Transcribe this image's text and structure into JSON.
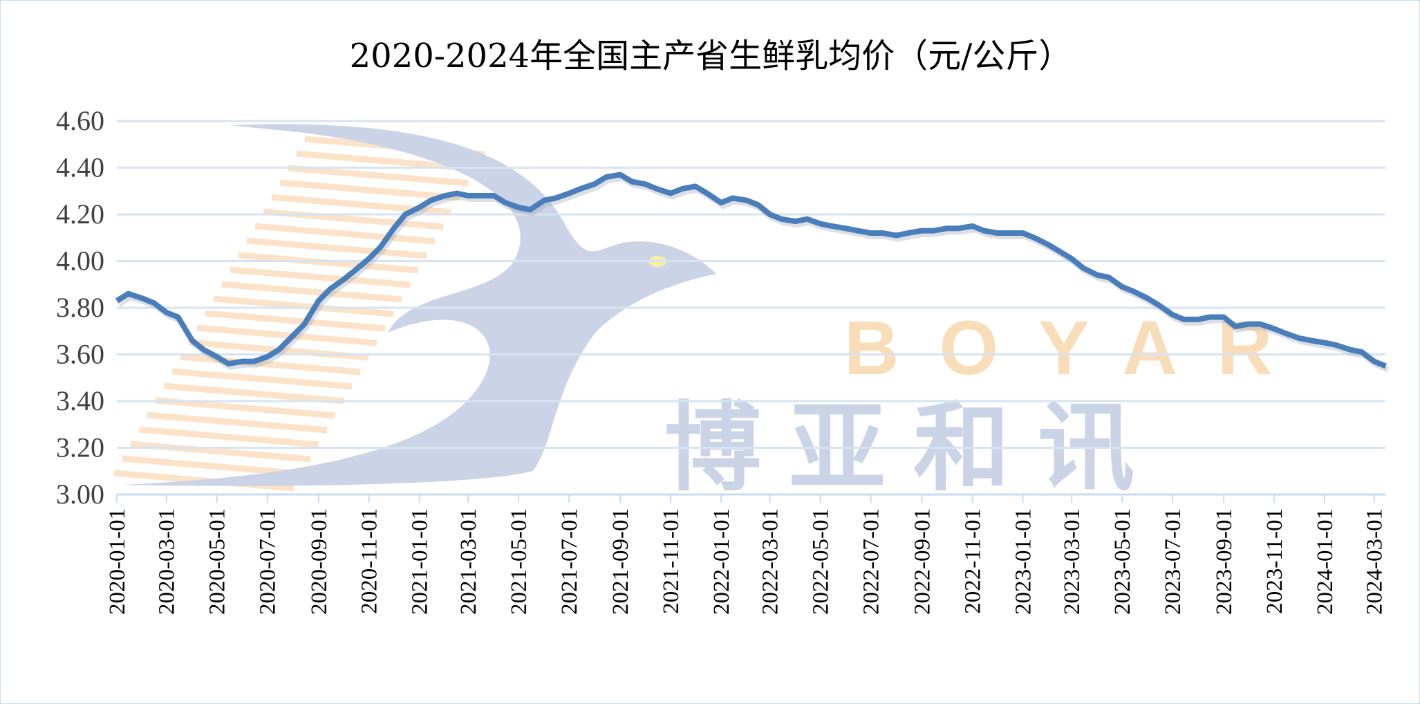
{
  "chart_data": {
    "type": "line",
    "title": "2020-2024年全国主产省生鲜乳均价（元/公斤）",
    "xlabel": "",
    "ylabel": "",
    "ylim": [
      3.0,
      4.6
    ],
    "yticks": [
      "3.00",
      "3.20",
      "3.40",
      "3.60",
      "3.80",
      "4.00",
      "4.20",
      "4.40",
      "4.60"
    ],
    "xticks": [
      "2020-01-01",
      "2020-03-01",
      "2020-05-01",
      "2020-07-01",
      "2020-09-01",
      "2020-11-01",
      "2021-01-01",
      "2021-03-01",
      "2021-05-01",
      "2021-07-01",
      "2021-09-01",
      "2021-11-01",
      "2022-01-01",
      "2022-03-01",
      "2022-05-01",
      "2022-07-01",
      "2022-09-01",
      "2022-11-01",
      "2023-01-01",
      "2023-03-01",
      "2023-05-01",
      "2023-07-01",
      "2023-09-01",
      "2023-11-01",
      "2024-01-01",
      "2024-03-01"
    ],
    "grid": true,
    "line_color": "#4a7ebb",
    "series": [
      {
        "x": [
          "2020-01-01",
          "2020-01-15",
          "2020-02-01",
          "2020-02-15",
          "2020-03-01",
          "2020-03-15",
          "2020-04-01",
          "2020-04-15",
          "2020-05-01",
          "2020-05-15",
          "2020-06-01",
          "2020-06-15",
          "2020-07-01",
          "2020-07-15",
          "2020-08-01",
          "2020-08-15",
          "2020-09-01",
          "2020-09-15",
          "2020-10-01",
          "2020-10-15",
          "2020-11-01",
          "2020-11-15",
          "2020-12-01",
          "2020-12-15",
          "2021-01-01",
          "2021-01-15",
          "2021-02-01",
          "2021-02-15",
          "2021-03-01",
          "2021-03-15",
          "2021-04-01",
          "2021-04-15",
          "2021-05-01",
          "2021-05-15",
          "2021-06-01",
          "2021-06-15",
          "2021-07-01",
          "2021-07-15",
          "2021-08-01",
          "2021-08-15",
          "2021-09-01",
          "2021-09-15",
          "2021-10-01",
          "2021-10-15",
          "2021-11-01",
          "2021-11-15",
          "2021-12-01",
          "2021-12-15",
          "2022-01-01",
          "2022-01-15",
          "2022-02-01",
          "2022-02-15",
          "2022-03-01",
          "2022-03-15",
          "2022-04-01",
          "2022-04-15",
          "2022-05-01",
          "2022-05-15",
          "2022-06-01",
          "2022-06-15",
          "2022-07-01",
          "2022-07-15",
          "2022-08-01",
          "2022-08-15",
          "2022-09-01",
          "2022-09-15",
          "2022-10-01",
          "2022-10-15",
          "2022-11-01",
          "2022-11-15",
          "2022-12-01",
          "2022-12-15",
          "2023-01-01",
          "2023-01-15",
          "2023-02-01",
          "2023-02-15",
          "2023-03-01",
          "2023-03-15",
          "2023-04-01",
          "2023-04-15",
          "2023-05-01",
          "2023-05-15",
          "2023-06-01",
          "2023-06-15",
          "2023-07-01",
          "2023-07-15",
          "2023-08-01",
          "2023-08-15",
          "2023-09-01",
          "2023-09-15",
          "2023-10-01",
          "2023-10-15",
          "2023-11-01",
          "2023-11-15",
          "2023-12-01",
          "2023-12-15",
          "2024-01-01",
          "2024-01-15",
          "2024-02-01",
          "2024-02-15",
          "2024-03-01",
          "2024-03-15"
        ],
        "values": [
          3.83,
          3.86,
          3.84,
          3.82,
          3.78,
          3.76,
          3.66,
          3.62,
          3.59,
          3.56,
          3.57,
          3.57,
          3.59,
          3.62,
          3.68,
          3.73,
          3.83,
          3.88,
          3.92,
          3.96,
          4.01,
          4.06,
          4.14,
          4.2,
          4.23,
          4.26,
          4.28,
          4.29,
          4.28,
          4.28,
          4.28,
          4.25,
          4.23,
          4.22,
          4.26,
          4.27,
          4.29,
          4.31,
          4.33,
          4.36,
          4.37,
          4.34,
          4.33,
          4.31,
          4.29,
          4.31,
          4.32,
          4.29,
          4.25,
          4.27,
          4.26,
          4.24,
          4.2,
          4.18,
          4.17,
          4.18,
          4.16,
          4.15,
          4.14,
          4.13,
          4.12,
          4.12,
          4.11,
          4.12,
          4.13,
          4.13,
          4.14,
          4.14,
          4.15,
          4.13,
          4.12,
          4.12,
          4.12,
          4.1,
          4.07,
          4.04,
          4.01,
          3.97,
          3.94,
          3.93,
          3.89,
          3.87,
          3.84,
          3.81,
          3.77,
          3.75,
          3.75,
          3.76,
          3.76,
          3.72,
          3.73,
          3.73,
          3.71,
          3.69,
          3.67,
          3.66,
          3.65,
          3.64,
          3.62,
          3.61,
          3.57,
          3.55
        ]
      }
    ]
  },
  "watermark": {
    "latin": "BOYAR",
    "chinese": "博亚和讯"
  }
}
